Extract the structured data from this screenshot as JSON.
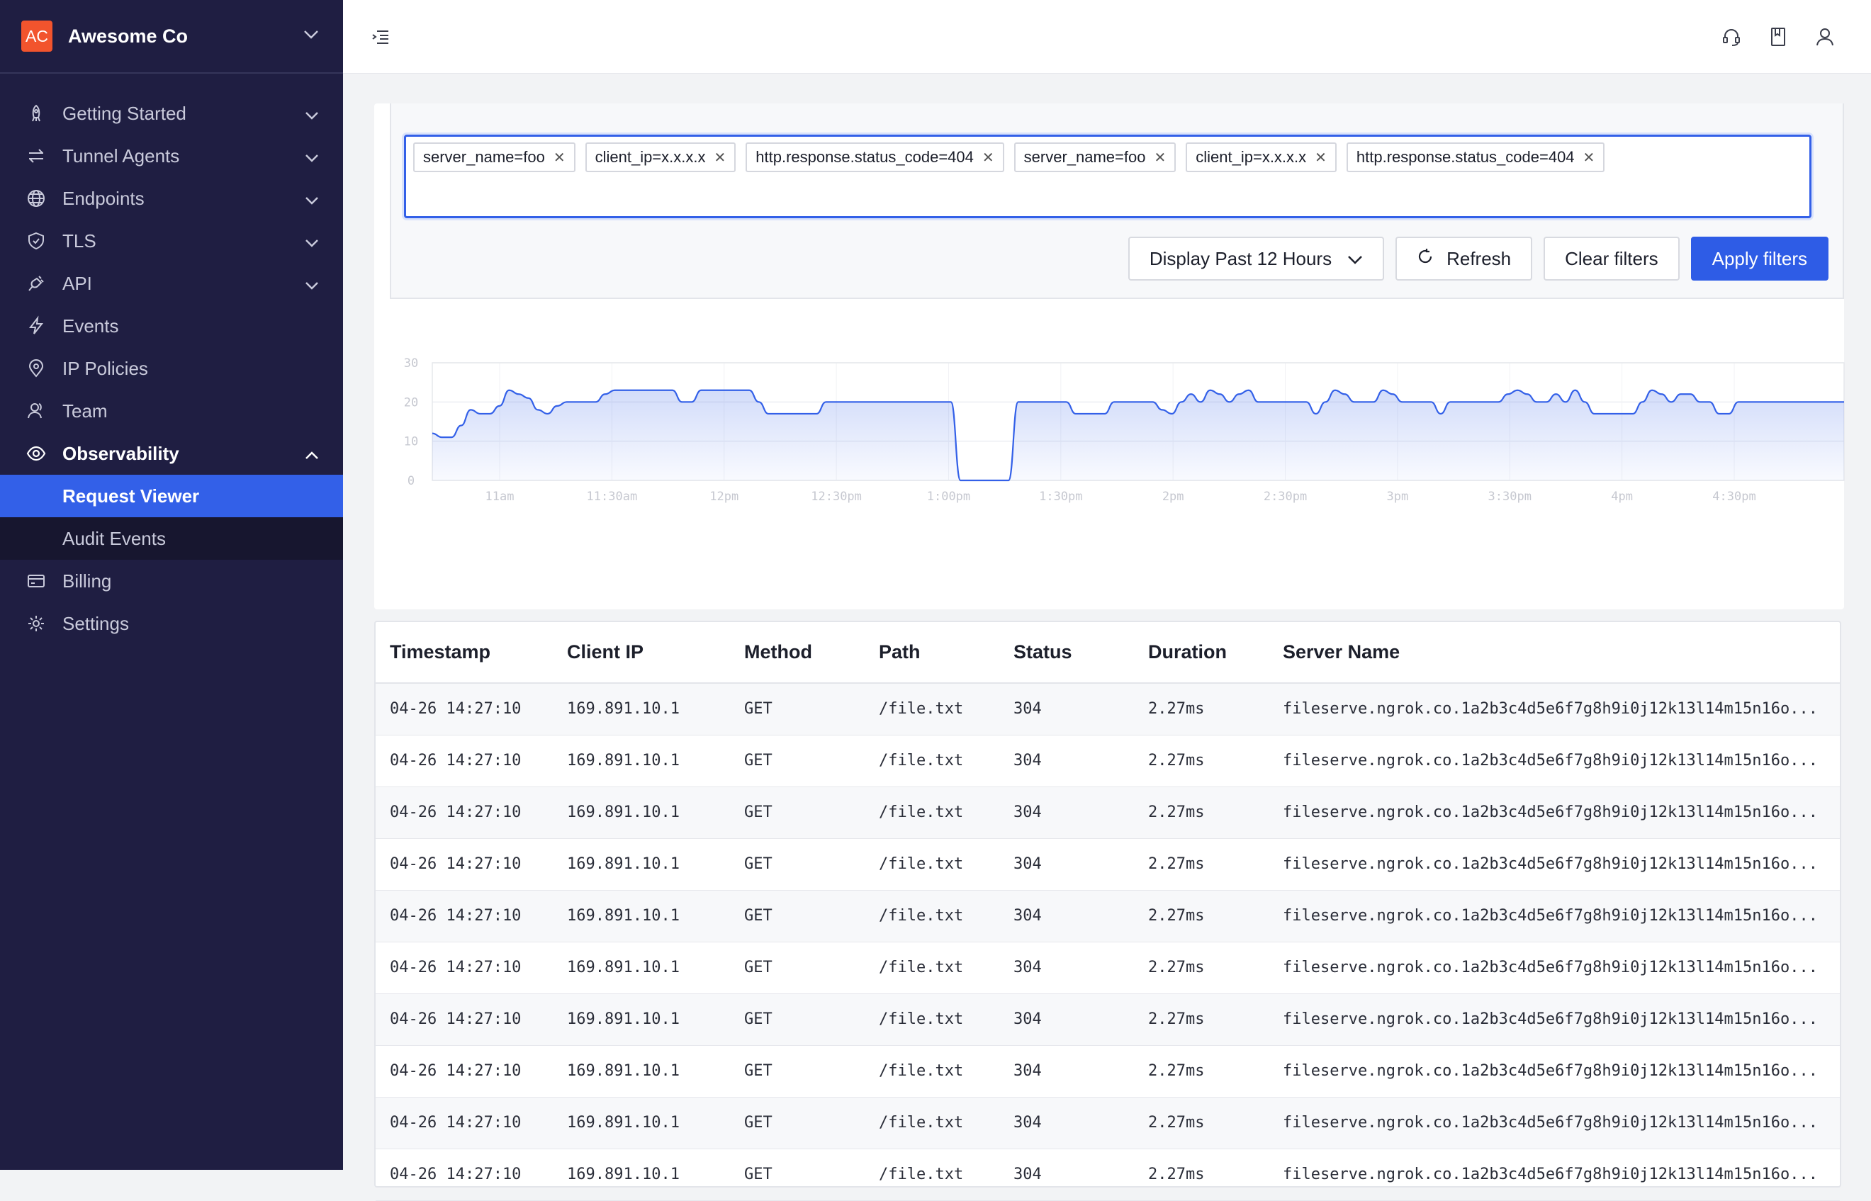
{
  "org": {
    "badge": "AC",
    "name": "Awesome Co"
  },
  "nav": [
    {
      "label": "Getting Started",
      "icon": "rocket-icon",
      "chevron": "down"
    },
    {
      "label": "Tunnel Agents",
      "icon": "arrows-icon",
      "chevron": "down"
    },
    {
      "label": "Endpoints",
      "icon": "globe-icon",
      "chevron": "down"
    },
    {
      "label": "TLS",
      "icon": "shield-icon",
      "chevron": "down"
    },
    {
      "label": "API",
      "icon": "plug-icon",
      "chevron": "down"
    },
    {
      "label": "Events",
      "icon": "bolt-icon",
      "chevron": ""
    },
    {
      "label": "IP Policies",
      "icon": "location-icon",
      "chevron": ""
    },
    {
      "label": "Team",
      "icon": "users-icon",
      "chevron": ""
    },
    {
      "label": "Observability",
      "icon": "eye-icon",
      "chevron": "up"
    }
  ],
  "subnav": [
    {
      "label": "Request Viewer",
      "active": true
    },
    {
      "label": "Audit Events",
      "active": false
    }
  ],
  "nav_bottom": [
    {
      "label": "Billing",
      "icon": "card-icon"
    },
    {
      "label": "Settings",
      "icon": "gear-icon"
    }
  ],
  "filters": {
    "tags": [
      "server_name=foo",
      "client_ip=x.x.x.x",
      "http.response.status_code=404",
      "server_name=foo",
      "client_ip=x.x.x.x",
      "http.response.status_code=404"
    ],
    "time_range": "Display Past 12 Hours",
    "refresh_label": "Refresh",
    "clear_label": "Clear filters",
    "apply_label": "Apply filters"
  },
  "chart_data": {
    "type": "area",
    "y_ticks": [
      "30",
      "20",
      "10",
      "0"
    ],
    "ylim": [
      0,
      30
    ],
    "x_ticks": [
      "11am",
      "11:30am",
      "12pm",
      "12:30pm",
      "1:00pm",
      "1:30pm",
      "2pm",
      "2:30pm",
      "3pm",
      "3:30pm",
      "4pm",
      "4:30pm"
    ],
    "grid": true,
    "legend": false,
    "values": [
      12,
      11,
      11,
      14,
      18,
      17,
      17,
      19,
      23,
      22,
      21,
      18,
      17,
      19,
      20,
      20,
      20,
      20,
      22,
      23,
      23,
      23,
      23,
      23,
      23,
      23,
      20,
      20,
      23,
      23,
      23,
      23,
      23,
      23,
      20,
      17,
      17,
      17,
      17,
      17,
      17,
      20,
      20,
      20,
      20,
      20,
      20,
      20,
      20,
      20,
      20,
      20,
      20,
      20,
      20,
      0,
      0,
      0,
      0,
      0,
      0,
      20,
      20,
      20,
      20,
      20,
      20,
      17,
      17,
      17,
      17,
      20,
      20,
      20,
      20,
      20,
      18,
      17,
      20,
      22,
      20,
      23,
      22,
      20,
      22,
      23,
      20,
      20,
      20,
      20,
      20,
      20,
      17,
      20,
      23,
      22,
      20,
      20,
      20,
      23,
      22,
      20,
      20,
      20,
      20,
      17,
      20,
      20,
      20,
      20,
      20,
      20,
      22,
      23,
      22,
      20,
      20,
      22,
      20,
      23,
      20,
      17,
      17,
      17,
      17,
      17,
      20,
      23,
      22,
      20,
      22,
      22,
      20,
      20,
      17,
      17,
      20,
      20,
      20,
      20,
      20,
      20,
      20,
      20,
      20,
      20,
      20,
      20
    ],
    "color": "#3360e8"
  },
  "table": {
    "headers": [
      "Timestamp",
      "Client IP",
      "Method",
      "Path",
      "Status",
      "Duration",
      "Server Name"
    ],
    "rows": [
      [
        "04-26 14:27:10",
        "169.891.10.1",
        "GET",
        "/file.txt",
        "304",
        "2.27ms",
        "fileserve.ngrok.co.1a2b3c4d5e6f7g8h9i0j12k13l14m15n16o..."
      ],
      [
        "04-26 14:27:10",
        "169.891.10.1",
        "GET",
        "/file.txt",
        "304",
        "2.27ms",
        "fileserve.ngrok.co.1a2b3c4d5e6f7g8h9i0j12k13l14m15n16o..."
      ],
      [
        "04-26 14:27:10",
        "169.891.10.1",
        "GET",
        "/file.txt",
        "304",
        "2.27ms",
        "fileserve.ngrok.co.1a2b3c4d5e6f7g8h9i0j12k13l14m15n16o..."
      ],
      [
        "04-26 14:27:10",
        "169.891.10.1",
        "GET",
        "/file.txt",
        "304",
        "2.27ms",
        "fileserve.ngrok.co.1a2b3c4d5e6f7g8h9i0j12k13l14m15n16o..."
      ],
      [
        "04-26 14:27:10",
        "169.891.10.1",
        "GET",
        "/file.txt",
        "304",
        "2.27ms",
        "fileserve.ngrok.co.1a2b3c4d5e6f7g8h9i0j12k13l14m15n16o..."
      ],
      [
        "04-26 14:27:10",
        "169.891.10.1",
        "GET",
        "/file.txt",
        "304",
        "2.27ms",
        "fileserve.ngrok.co.1a2b3c4d5e6f7g8h9i0j12k13l14m15n16o..."
      ],
      [
        "04-26 14:27:10",
        "169.891.10.1",
        "GET",
        "/file.txt",
        "304",
        "2.27ms",
        "fileserve.ngrok.co.1a2b3c4d5e6f7g8h9i0j12k13l14m15n16o..."
      ],
      [
        "04-26 14:27:10",
        "169.891.10.1",
        "GET",
        "/file.txt",
        "304",
        "2.27ms",
        "fileserve.ngrok.co.1a2b3c4d5e6f7g8h9i0j12k13l14m15n16o..."
      ],
      [
        "04-26 14:27:10",
        "169.891.10.1",
        "GET",
        "/file.txt",
        "304",
        "2.27ms",
        "fileserve.ngrok.co.1a2b3c4d5e6f7g8h9i0j12k13l14m15n16o..."
      ],
      [
        "04-26 14:27:10",
        "169.891.10.1",
        "GET",
        "/file.txt",
        "304",
        "2.27ms",
        "fileserve.ngrok.co.1a2b3c4d5e6f7g8h9i0j12k13l14m15n16o..."
      ]
    ]
  }
}
